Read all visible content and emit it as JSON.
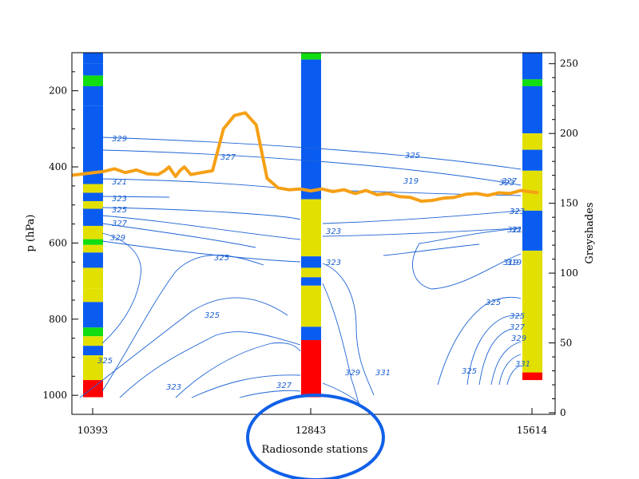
{
  "colors": {
    "blue": "#0a5cf0",
    "green": "#11dd11",
    "yellow": "#e2e000",
    "red": "#ff0000",
    "orange": "#f5a016",
    "contour": "#1e64d4",
    "ellipse": "#1060e8"
  },
  "chart_data": {
    "type": "line",
    "xlabel": "Radiosonde stations",
    "ylabel": "p (hPa)",
    "y2label": "Greyshades",
    "x_ticks": [
      "10393",
      "12843",
      "15614"
    ],
    "y_ticks": [
      "200",
      "400",
      "600",
      "800",
      "1000"
    ],
    "y_lim": [
      100,
      1050
    ],
    "y_reversed": true,
    "y2_ticks": [
      "0",
      "50",
      "100",
      "150",
      "200",
      "250"
    ],
    "y2_lim": [
      0,
      255
    ],
    "stations": [
      {
        "name": "10393",
        "segments": [
          [
            100,
            128,
            "blue"
          ],
          [
            128,
            160,
            "blue"
          ],
          [
            160,
            188,
            "green"
          ],
          [
            188,
            240,
            "blue"
          ],
          [
            240,
            445,
            "blue"
          ],
          [
            445,
            468,
            "yellow"
          ],
          [
            468,
            490,
            "blue"
          ],
          [
            490,
            510,
            "yellow"
          ],
          [
            510,
            555,
            "blue"
          ],
          [
            555,
            590,
            "yellow"
          ],
          [
            590,
            605,
            "green"
          ],
          [
            605,
            625,
            "yellow"
          ],
          [
            625,
            665,
            "blue"
          ],
          [
            665,
            720,
            "yellow"
          ],
          [
            720,
            755,
            "yellow"
          ],
          [
            755,
            822,
            "blue"
          ],
          [
            822,
            845,
            "green"
          ],
          [
            845,
            870,
            "yellow"
          ],
          [
            870,
            895,
            "blue"
          ],
          [
            895,
            960,
            "yellow"
          ],
          [
            960,
            1005,
            "red"
          ]
        ]
      },
      {
        "name": "12843",
        "segments": [
          [
            100,
            118,
            "green"
          ],
          [
            118,
            485,
            "blue"
          ],
          [
            485,
            635,
            "yellow"
          ],
          [
            635,
            665,
            "blue"
          ],
          [
            665,
            690,
            "yellow"
          ],
          [
            690,
            712,
            "blue"
          ],
          [
            712,
            820,
            "yellow"
          ],
          [
            820,
            855,
            "blue"
          ],
          [
            855,
            1005,
            "red"
          ]
        ]
      },
      {
        "name": "15614",
        "segments": [
          [
            100,
            170,
            "blue"
          ],
          [
            170,
            188,
            "green"
          ],
          [
            188,
            312,
            "blue"
          ],
          [
            312,
            355,
            "yellow"
          ],
          [
            355,
            410,
            "blue"
          ],
          [
            410,
            515,
            "yellow"
          ],
          [
            515,
            620,
            "blue"
          ],
          [
            620,
            940,
            "yellow"
          ],
          [
            940,
            960,
            "red"
          ]
        ]
      }
    ],
    "series": [
      {
        "x": [
          0,
          0.05,
          0.1,
          0.15,
          0.2,
          0.25,
          0.3,
          0.33,
          0.35,
          0.38,
          0.4,
          0.42,
          0.45,
          0.5,
          0.55,
          0.6,
          0.65,
          0.7,
          0.75,
          0.8,
          0.85,
          0.9,
          0.95,
          1.0,
          1.05,
          1.1,
          1.15,
          1.2,
          1.25,
          1.3,
          1.35,
          1.4,
          1.45,
          1.5,
          1.55,
          1.6,
          1.65,
          1.7,
          1.75,
          1.8,
          1.85,
          1.9,
          1.95,
          2.0,
          2.03
        ],
        "y": [
          422,
          412,
          405,
          415,
          408,
          418,
          420,
          410,
          400,
          425,
          410,
          400,
          420,
          415,
          410,
          300,
          265,
          258,
          290,
          430,
          455,
          460,
          458,
          463,
          458,
          465,
          460,
          470,
          462,
          473,
          470,
          478,
          480,
          490,
          488,
          482,
          480,
          472,
          470,
          475,
          468,
          470,
          462,
          466,
          468
        ]
      }
    ],
    "contour_labels": [
      "329",
      "327",
      "325",
      "323",
      "321",
      "319",
      "323",
      "325",
      "327",
      "329",
      "323",
      "323",
      "327",
      "325",
      "323",
      "321",
      "319",
      "325",
      "323",
      "325",
      "327",
      "329",
      "331",
      "325",
      "325",
      "331",
      "329",
      "327",
      "325",
      "323",
      "321",
      "319"
    ]
  }
}
